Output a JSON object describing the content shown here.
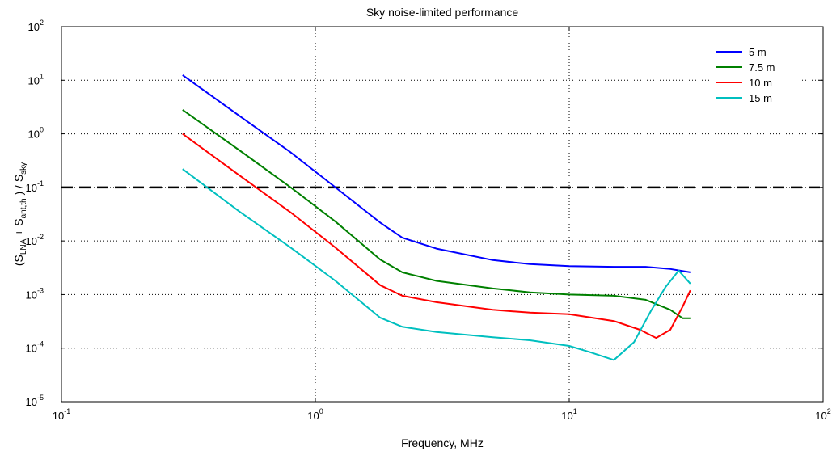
{
  "chart_data": {
    "type": "line",
    "title": "Sky noise-limited performance",
    "xlabel": "Frequency, MHz",
    "ylabel": {
      "prefix": "(S",
      "sub1": "LNA",
      "mid": " + S",
      "sub2": "ant,th",
      "mid2": " ) / S",
      "sub3": "sky"
    },
    "xscale": "log",
    "yscale": "log",
    "xlim": [
      0.1,
      100
    ],
    "ylim": [
      1e-05,
      100
    ],
    "grid": true,
    "legend_position": "top-right",
    "x_ticks": [
      {
        "base": "10",
        "exp": "-1"
      },
      {
        "base": "10",
        "exp": "0"
      },
      {
        "base": "10",
        "exp": "1"
      },
      {
        "base": "10",
        "exp": "2"
      }
    ],
    "y_ticks": [
      {
        "base": "10",
        "exp": "-5"
      },
      {
        "base": "10",
        "exp": "-4"
      },
      {
        "base": "10",
        "exp": "-3"
      },
      {
        "base": "10",
        "exp": "-2"
      },
      {
        "base": "10",
        "exp": "-1"
      },
      {
        "base": "10",
        "exp": "0"
      },
      {
        "base": "10",
        "exp": "1"
      },
      {
        "base": "10",
        "exp": "2"
      }
    ],
    "threshold": {
      "y": 0.1,
      "style": "dashed",
      "color": "#000000"
    },
    "series": [
      {
        "name": "5 m",
        "color": "#0000ff",
        "x": [
          0.3,
          0.5,
          0.8,
          1.2,
          1.8,
          2.2,
          3.0,
          5.0,
          7.0,
          10.0,
          15.0,
          20.0,
          25.0,
          30.0
        ],
        "y": [
          12.5,
          2.2,
          0.45,
          0.1,
          0.022,
          0.0115,
          0.0072,
          0.0044,
          0.0037,
          0.0034,
          0.0033,
          0.0033,
          0.003,
          0.0026
        ]
      },
      {
        "name": "7.5 m",
        "color": "#008000",
        "x": [
          0.3,
          0.5,
          0.8,
          1.2,
          1.8,
          2.2,
          3.0,
          5.0,
          7.0,
          10.0,
          15.0,
          20.0,
          25.0,
          28.0,
          30.0
        ],
        "y": [
          2.8,
          0.5,
          0.1,
          0.023,
          0.0045,
          0.0026,
          0.0018,
          0.0013,
          0.0011,
          0.001,
          0.00095,
          0.0008,
          0.00052,
          0.00036,
          0.00036
        ]
      },
      {
        "name": "10 m",
        "color": "#ff0000",
        "x": [
          0.3,
          0.5,
          0.8,
          1.2,
          1.8,
          2.2,
          3.0,
          5.0,
          7.0,
          10.0,
          15.0,
          19.0,
          22.0,
          25.0,
          28.0,
          30.0
        ],
        "y": [
          1.0,
          0.17,
          0.034,
          0.0075,
          0.0015,
          0.00095,
          0.00072,
          0.00052,
          0.00046,
          0.00043,
          0.00032,
          0.00022,
          0.000155,
          0.00022,
          0.0006,
          0.0012
        ]
      },
      {
        "name": "15 m",
        "color": "#00bfbf",
        "x": [
          0.3,
          0.5,
          0.8,
          1.2,
          1.8,
          2.2,
          3.0,
          5.0,
          7.0,
          10.0,
          12.0,
          15.0,
          18.0,
          21.0,
          24.0,
          27.0,
          30.0
        ],
        "y": [
          0.22,
          0.036,
          0.0075,
          0.0018,
          0.00037,
          0.00025,
          0.0002,
          0.00016,
          0.00014,
          0.00011,
          8.5e-05,
          6e-05,
          0.00013,
          0.0005,
          0.0014,
          0.0028,
          0.0016
        ]
      }
    ]
  }
}
